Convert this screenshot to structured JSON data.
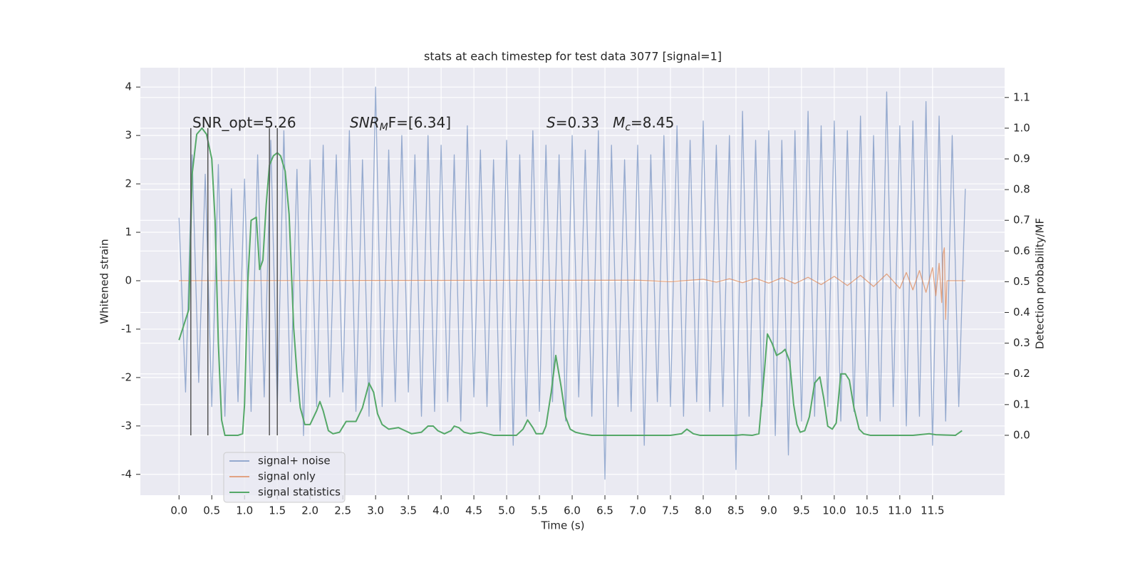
{
  "chart_data": {
    "type": "line",
    "title": "stats at each timestep for test data 3077 [signal=1]",
    "x_label": "Time (s)",
    "y_label": "Whitened strain",
    "y2_label": "Detection probability/MF",
    "xlim": [
      -0.59,
      12.6
    ],
    "ylim": [
      -4.43,
      4.4
    ],
    "y2lim": [
      -0.195,
      1.197
    ],
    "xticks": [
      {
        "value": 0,
        "label": "0.0"
      },
      0.5,
      {
        "value": 1,
        "label": "1.0"
      },
      1.5,
      {
        "value": 2,
        "label": "2.0"
      },
      2.5,
      {
        "value": 3,
        "label": "3.0"
      },
      3.5,
      {
        "value": 4,
        "label": "4.0"
      },
      4.5,
      {
        "value": 5,
        "label": "5.0"
      },
      5.5,
      {
        "value": 6,
        "label": "6.0"
      },
      6.5,
      {
        "value": 7,
        "label": "7.0"
      },
      7.5,
      {
        "value": 8,
        "label": "8.0"
      },
      8.5,
      {
        "value": 9,
        "label": "9.0"
      },
      9.5,
      {
        "value": 10,
        "label": "10.0"
      },
      10.5,
      {
        "value": 11,
        "label": "11.0"
      },
      11.5
    ],
    "yticks": [
      -4,
      -3,
      -2,
      -1,
      0,
      1,
      2,
      3,
      4
    ],
    "y2ticks": [
      {
        "value": 0,
        "label": "0.0"
      },
      0.1,
      0.2,
      0.3,
      0.4,
      0.5,
      0.6,
      0.7,
      0.8,
      0.9,
      {
        "value": 1,
        "label": "1.0"
      },
      1.1
    ],
    "grid": true,
    "legend": "lower left",
    "series": [
      {
        "name": "signal+ noise",
        "color": "#4c72b0",
        "alpha": 0.55,
        "x": [
          0,
          0.1,
          0.2,
          0.3,
          0.4,
          0.5,
          0.6,
          0.7,
          0.8,
          0.9,
          1,
          1.1,
          1.2,
          1.3,
          1.4,
          1.5,
          1.6,
          1.7,
          1.8,
          1.9,
          2,
          2.1,
          2.2,
          2.3,
          2.4,
          2.5,
          2.6,
          2.7,
          2.8,
          2.9,
          3,
          3.1,
          3.2,
          3.3,
          3.4,
          3.5,
          3.6,
          3.7,
          3.8,
          3.9,
          4,
          4.1,
          4.2,
          4.3,
          4.4,
          4.5,
          4.6,
          4.7,
          4.8,
          4.9,
          5,
          5.1,
          5.2,
          5.3,
          5.4,
          5.5,
          5.6,
          5.7,
          5.8,
          5.9,
          6,
          6.1,
          6.2,
          6.3,
          6.4,
          6.5,
          6.6,
          6.7,
          6.8,
          6.9,
          7,
          7.1,
          7.2,
          7.3,
          7.4,
          7.5,
          7.6,
          7.7,
          7.8,
          7.9,
          8,
          8.1,
          8.2,
          8.3,
          8.4,
          8.5,
          8.6,
          8.7,
          8.8,
          8.9,
          9,
          9.1,
          9.2,
          9.3,
          9.4,
          9.5,
          9.6,
          9.7,
          9.8,
          9.9,
          10,
          10.1,
          10.2,
          10.3,
          10.4,
          10.5,
          10.6,
          10.7,
          10.8,
          10.9,
          11,
          11.1,
          11.2,
          11.3,
          11.4,
          11.5,
          11.6,
          11.7,
          11.8,
          11.9,
          12
        ],
        "values": [
          1.3,
          -2.3,
          2.6,
          -2.1,
          2.2,
          -2.6,
          2.4,
          -2.8,
          1.9,
          -2.5,
          2.1,
          -2.7,
          2.6,
          -2.4,
          2.9,
          -2.6,
          3.1,
          -2.5,
          2.3,
          -3.2,
          2.5,
          -2.6,
          2.8,
          -2.4,
          2.6,
          -2.3,
          3.1,
          -2.7,
          2.5,
          -2.8,
          4.0,
          -2.6,
          2.7,
          -2.5,
          3.0,
          -2.3,
          2.6,
          -2.8,
          3.0,
          -2.7,
          2.8,
          -2.5,
          2.6,
          -2.9,
          3.2,
          -2.4,
          2.7,
          -2.6,
          2.5,
          -3.1,
          2.9,
          -3.4,
          2.6,
          -2.8,
          3.1,
          -2.7,
          2.8,
          -2.5,
          2.6,
          -2.9,
          3.0,
          -2.4,
          2.7,
          -2.8,
          3.1,
          -4.1,
          2.8,
          -2.6,
          2.5,
          -2.7,
          2.8,
          -3.4,
          2.6,
          -2.5,
          3.0,
          -2.6,
          3.2,
          -2.8,
          2.9,
          -2.5,
          3.3,
          -2.7,
          2.8,
          -2.6,
          3.0,
          -3.9,
          3.5,
          -2.8,
          2.9,
          -2.6,
          3.1,
          -3.2,
          2.9,
          -3.6,
          3.1,
          -2.9,
          3.5,
          -2.8,
          3.2,
          -2.6,
          3.3,
          -2.9,
          3.1,
          -2.7,
          3.4,
          -2.8,
          3.0,
          -2.9,
          3.9,
          -2.6,
          3.2,
          -3.0,
          3.3,
          -2.8,
          3.7,
          -3.4,
          3.4,
          -2.9,
          3.0,
          -2.6,
          1.9
        ]
      },
      {
        "name": "signal only",
        "color": "#dd8452",
        "alpha": 0.7,
        "x": [
          0,
          7,
          7.5,
          8,
          8.2,
          8.4,
          8.6,
          8.8,
          9,
          9.2,
          9.4,
          9.6,
          9.8,
          10,
          10.2,
          10.4,
          10.6,
          10.8,
          11,
          11.1,
          11.2,
          11.3,
          11.4,
          11.5,
          11.55,
          11.6,
          11.64,
          11.66,
          11.68,
          11.7,
          11.72,
          12
        ],
        "values": [
          0,
          0.01,
          -0.02,
          0.03,
          -0.03,
          0.04,
          -0.04,
          0.05,
          -0.05,
          0.06,
          -0.06,
          0.07,
          -0.08,
          0.09,
          -0.1,
          0.11,
          -0.12,
          0.14,
          -0.16,
          0.17,
          -0.19,
          0.21,
          -0.24,
          0.27,
          -0.31,
          0.36,
          -0.45,
          0.55,
          0.68,
          -0.8,
          0,
          0
        ]
      },
      {
        "name": "signal statistics",
        "color": "#55a868",
        "axis": "y2",
        "x": [
          0,
          0.15,
          0.2,
          0.27,
          0.35,
          0.42,
          0.5,
          0.55,
          0.6,
          0.65,
          0.7,
          0.8,
          0.9,
          0.97,
          1,
          1.05,
          1.1,
          1.18,
          1.23,
          1.28,
          1.33,
          1.38,
          1.44,
          1.5,
          1.55,
          1.62,
          1.68,
          1.75,
          1.8,
          1.85,
          1.92,
          2,
          2.1,
          2.15,
          2.2,
          2.28,
          2.35,
          2.45,
          2.55,
          2.7,
          2.8,
          2.9,
          2.97,
          3.03,
          3.1,
          3.2,
          3.35,
          3.45,
          3.55,
          3.7,
          3.8,
          3.88,
          3.95,
          4.05,
          4.15,
          4.2,
          4.27,
          4.35,
          4.45,
          4.6,
          4.7,
          4.8,
          5.15,
          5.25,
          5.32,
          5.4,
          5.45,
          5.55,
          5.6,
          5.68,
          5.75,
          5.83,
          5.9,
          5.97,
          6.05,
          6.15,
          6.3,
          7.5,
          7.67,
          7.75,
          7.85,
          7.95,
          8.5,
          8.6,
          8.75,
          8.85,
          8.93,
          8.98,
          9.05,
          9.12,
          9.2,
          9.25,
          9.32,
          9.38,
          9.43,
          9.48,
          9.55,
          9.62,
          9.7,
          9.78,
          9.84,
          9.9,
          9.97,
          10.03,
          10.1,
          10.17,
          10.23,
          10.3,
          10.38,
          10.45,
          10.55,
          11.2,
          11.45,
          11.55,
          11.85,
          11.95
        ],
        "values": [
          0.31,
          0.41,
          0.85,
          0.98,
          1,
          0.98,
          0.9,
          0.7,
          0.3,
          0.05,
          0,
          0,
          0,
          0.005,
          0.1,
          0.5,
          0.7,
          0.71,
          0.54,
          0.57,
          0.75,
          0.88,
          0.91,
          0.92,
          0.91,
          0.86,
          0.72,
          0.35,
          0.2,
          0.09,
          0.035,
          0.035,
          0.08,
          0.11,
          0.08,
          0.015,
          0.005,
          0.01,
          0.045,
          0.045,
          0.09,
          0.17,
          0.14,
          0.07,
          0.035,
          0.02,
          0.025,
          0.015,
          0.005,
          0.01,
          0.03,
          0.03,
          0.015,
          0.005,
          0.015,
          0.03,
          0.025,
          0.01,
          0.005,
          0.01,
          0.005,
          0,
          0,
          0.02,
          0.05,
          0.025,
          0.005,
          0.005,
          0.03,
          0.14,
          0.26,
          0.16,
          0.06,
          0.02,
          0.01,
          0.005,
          0,
          0,
          0.005,
          0.02,
          0.005,
          0,
          0,
          0.002,
          0,
          0.005,
          0.2,
          0.33,
          0.3,
          0.26,
          0.27,
          0.28,
          0.24,
          0.1,
          0.035,
          0.01,
          0.015,
          0.06,
          0.17,
          0.19,
          0.12,
          0.03,
          0.02,
          0.04,
          0.2,
          0.2,
          0.18,
          0.09,
          0.02,
          0.005,
          0,
          0,
          0.005,
          0.002,
          0,
          0.015
        ]
      }
    ],
    "vertical_lines": {
      "color": "#555555",
      "axis": "y2",
      "x": [
        0.18,
        0.44,
        1.38,
        1.5
      ],
      "range": [
        0,
        1
      ]
    },
    "annotations": [
      [
        {
          "text": "SNR_opt=5.26"
        }
      ],
      [
        {
          "text": "SNR",
          "italic": true
        },
        {
          "text": "M",
          "italic": true,
          "sub": true
        },
        {
          "text": "F=[6.34]"
        }
      ],
      [
        {
          "text": "S",
          "italic": true
        },
        {
          "text": "=0.33   "
        },
        {
          "text": "M",
          "italic": true
        },
        {
          "text": "c",
          "italic": true,
          "sub": true
        },
        {
          "text": "=8.45"
        }
      ]
    ]
  }
}
